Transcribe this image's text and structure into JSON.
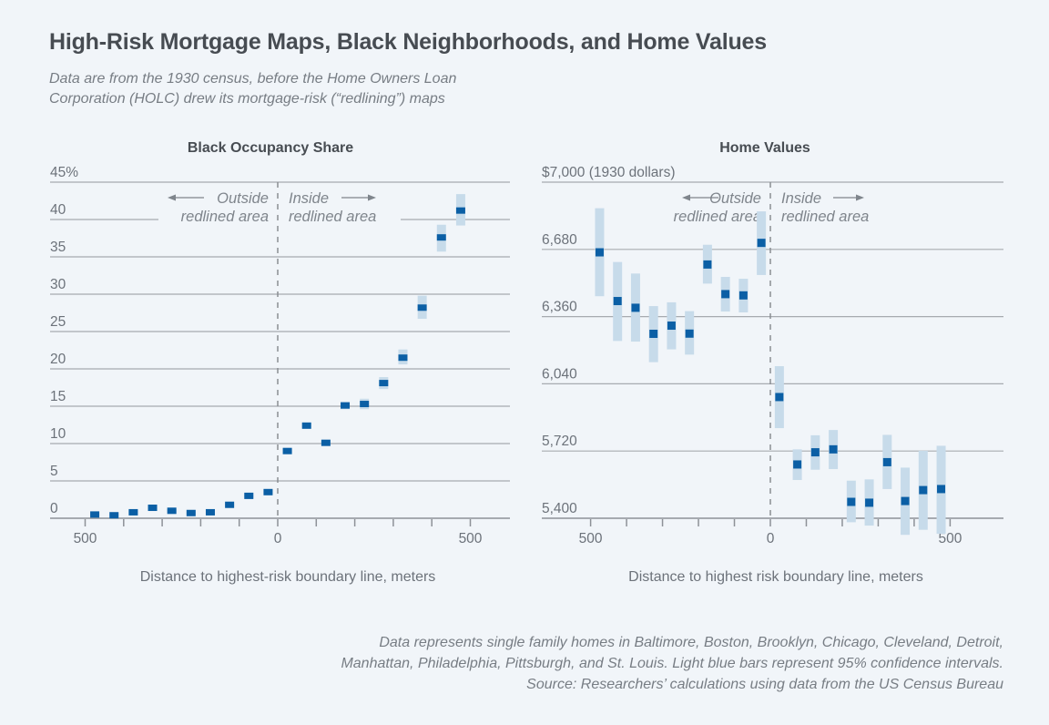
{
  "header": {
    "title": "High-Risk Mortgage Maps, Black Neighborhoods, and Home Values",
    "subtitle_line1": "Data are from the 1930 census, before the Home Owners Loan",
    "subtitle_line2": "Corporation (HOLC) drew its mortgage-risk (“redlining”) maps"
  },
  "colors": {
    "point": "#0b5fa5",
    "confidence_interval": "#c7dbea",
    "background": "#f1f5f9"
  },
  "annotations": {
    "outside_line1": "Outside",
    "outside_line2": "redlined area",
    "inside_line1": "Inside",
    "inside_line2": "redlined area"
  },
  "footnote": {
    "line1": "Data represents single family homes in Baltimore, Boston, Brooklyn, Chicago, Cleveland, Detroit,",
    "line2": "Manhattan, Philadelphia, Pittsburgh, and St. Louis. Light blue bars represent 95% confidence intervals.",
    "line3": "Source: Researchers’ calculations using data from the US Census Bureau"
  },
  "chart_data": [
    {
      "type": "scatter",
      "title": "Black Occupancy Share",
      "xlabel": "Distance to highest-risk boundary line, meters",
      "ylabel": "",
      "ylim": [
        0,
        45
      ],
      "xlim": [
        -500,
        500
      ],
      "yticks": [
        0,
        5,
        10,
        15,
        20,
        25,
        30,
        35,
        40,
        45
      ],
      "ytick_labels": [
        "0",
        "5",
        "10",
        "15",
        "20",
        "25",
        "30",
        "35",
        "40",
        "45%"
      ],
      "xticks": [
        -500,
        -400,
        -300,
        -200,
        -100,
        0,
        100,
        200,
        300,
        400,
        500
      ],
      "xtick_labels": [
        {
          "x": -500,
          "label": "500"
        },
        {
          "x": 0,
          "label": "0"
        },
        {
          "x": 500,
          "label": "500"
        }
      ],
      "grid": true,
      "unit": "percent",
      "x": [
        -475,
        -425,
        -375,
        -325,
        -275,
        -225,
        -175,
        -125,
        -75,
        -25,
        25,
        75,
        125,
        175,
        225,
        275,
        325,
        375,
        425,
        475
      ],
      "y": [
        0.5,
        0.4,
        0.8,
        1.4,
        1.0,
        0.7,
        0.8,
        1.8,
        3.0,
        3.5,
        9.0,
        12.4,
        10.1,
        15.1,
        15.3,
        18.1,
        21.5,
        28.2,
        37.6,
        41.2
      ],
      "ci_low": [
        0.3,
        0.2,
        0.6,
        1.2,
        0.8,
        0.5,
        0.6,
        1.6,
        2.8,
        3.3,
        8.6,
        12.1,
        9.9,
        14.6,
        14.6,
        17.3,
        20.6,
        26.7,
        35.7,
        39.2
      ],
      "ci_high": [
        0.7,
        0.6,
        1.0,
        1.6,
        1.2,
        0.9,
        1.0,
        2.0,
        3.2,
        3.7,
        9.4,
        12.7,
        10.3,
        15.6,
        16.0,
        18.9,
        22.6,
        29.8,
        39.3,
        43.4
      ]
    },
    {
      "type": "scatter",
      "title": "Home Values",
      "xlabel": "Distance to highest risk boundary line, meters",
      "ylabel": "",
      "ylim": [
        5400,
        7000
      ],
      "xlim": [
        -500,
        500
      ],
      "yticks": [
        5400,
        5720,
        6040,
        6360,
        6680,
        7000
      ],
      "ytick_labels": [
        "5,400",
        "5,720",
        "6,040",
        "6,360",
        "6,680",
        "$7,000 (1930 dollars)"
      ],
      "xticks": [
        -500,
        -400,
        -300,
        -200,
        -100,
        0,
        100,
        200,
        300,
        400,
        500
      ],
      "xtick_labels": [
        {
          "x": -500,
          "label": "500"
        },
        {
          "x": 0,
          "label": "0"
        },
        {
          "x": 500,
          "label": "500"
        }
      ],
      "grid": true,
      "unit": "1930 dollars",
      "x": [
        -475,
        -425,
        -375,
        -325,
        -275,
        -225,
        -175,
        -125,
        -75,
        -25,
        25,
        75,
        125,
        175,
        225,
        275,
        325,
        375,
        425,
        475
      ],
      "y": [
        6666,
        6434,
        6402,
        6278,
        6317,
        6279,
        6608,
        6467,
        6461,
        6711,
        5977,
        5656,
        5714,
        5728,
        5478,
        5474,
        5667,
        5482,
        5534,
        5539
      ],
      "ci_low": [
        6457,
        6244,
        6241,
        6143,
        6204,
        6179,
        6517,
        6384,
        6380,
        6558,
        5829,
        5582,
        5631,
        5634,
        5381,
        5365,
        5539,
        5321,
        5345,
        5326
      ],
      "ci_high": [
        6876,
        6620,
        6565,
        6410,
        6428,
        6386,
        6702,
        6549,
        6540,
        6861,
        6124,
        5728,
        5795,
        5820,
        5579,
        5585,
        5797,
        5641,
        5721,
        5745
      ]
    }
  ]
}
